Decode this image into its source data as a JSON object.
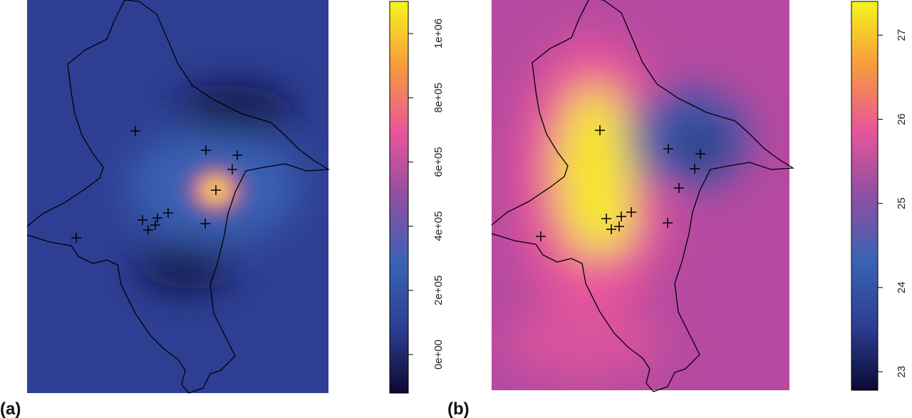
{
  "panels": [
    {
      "label": "(a)",
      "colorbar": {
        "lim": [
          -120000,
          1100000
        ],
        "ticks": [
          {
            "value": 0,
            "label": "0e+00"
          },
          {
            "value": 200000,
            "label": "2e+05"
          },
          {
            "value": 400000,
            "label": "4e+05"
          },
          {
            "value": 600000,
            "label": "6e+05"
          },
          {
            "value": 800000,
            "label": "8e+05"
          },
          {
            "value": 1000000,
            "label": "1e+06"
          }
        ],
        "colors": [
          "#0c0a33",
          "#2c3f92",
          "#3a63b4",
          "#8e4fa2",
          "#e8559a",
          "#f79a3e",
          "#f5f51c"
        ]
      }
    },
    {
      "label": "(b)",
      "colorbar": {
        "lim": [
          22.78,
          27.4
        ],
        "ticks": [
          23,
          24,
          25,
          26,
          27
        ],
        "colors": [
          "#0c0a33",
          "#2c3f92",
          "#3a63b4",
          "#8e4fa2",
          "#e8559a",
          "#f79a3e",
          "#f5f51c"
        ]
      }
    }
  ]
}
